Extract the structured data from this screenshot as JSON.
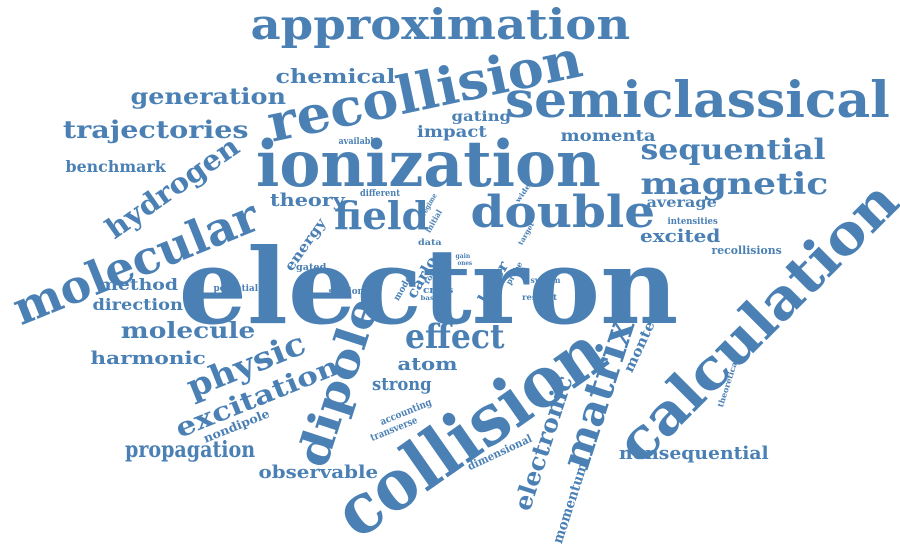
{
  "word_cloud": {
    "color": "#4a80b4",
    "words": [
      {
        "text": "electron"
      },
      {
        "text": "collision"
      },
      {
        "text": "ionization"
      },
      {
        "text": "recollision"
      },
      {
        "text": "calculation"
      },
      {
        "text": "molecular"
      },
      {
        "text": "semiclassical"
      },
      {
        "text": "approximation"
      },
      {
        "text": "double"
      },
      {
        "text": "field"
      },
      {
        "text": "dipole"
      },
      {
        "text": "matrix"
      },
      {
        "text": "magnetic"
      },
      {
        "text": "sequential"
      },
      {
        "text": "effect"
      },
      {
        "text": "physic"
      },
      {
        "text": "hydrogen"
      },
      {
        "text": "excitation"
      },
      {
        "text": "trajectories"
      },
      {
        "text": "generation"
      },
      {
        "text": "molecule"
      },
      {
        "text": "propagation"
      },
      {
        "text": "electronic"
      },
      {
        "text": "chemical"
      },
      {
        "text": "harmonic"
      },
      {
        "text": "benchmark"
      },
      {
        "text": "nonsequential"
      },
      {
        "text": "momenta"
      },
      {
        "text": "impact"
      },
      {
        "text": "gating"
      },
      {
        "text": "theory"
      },
      {
        "text": "excited"
      },
      {
        "text": "average"
      },
      {
        "text": "strong"
      },
      {
        "text": "atom"
      },
      {
        "text": "observable"
      },
      {
        "text": "momentum"
      },
      {
        "text": "method"
      },
      {
        "text": "direction"
      },
      {
        "text": "monte"
      },
      {
        "text": "carlo"
      },
      {
        "text": "laser"
      },
      {
        "text": "energy"
      },
      {
        "text": "nondipole"
      },
      {
        "text": "recollisions"
      },
      {
        "text": "dimensional"
      },
      {
        "text": "intensities"
      },
      {
        "text": "transverse"
      },
      {
        "text": "accounting"
      },
      {
        "text": "theoretical"
      },
      {
        "text": "available"
      },
      {
        "text": "different"
      },
      {
        "text": "gated"
      },
      {
        "text": "data"
      },
      {
        "text": "potential"
      },
      {
        "text": "section"
      },
      {
        "text": "model"
      },
      {
        "text": "focus"
      },
      {
        "text": "basis"
      },
      {
        "text": "cross"
      },
      {
        "text": "system"
      },
      {
        "text": "respect"
      },
      {
        "text": "probe"
      },
      {
        "text": "initial"
      },
      {
        "text": "regime"
      },
      {
        "text": "wider"
      },
      {
        "text": "target"
      },
      {
        "text": "gain"
      },
      {
        "text": "ones"
      }
    ]
  }
}
